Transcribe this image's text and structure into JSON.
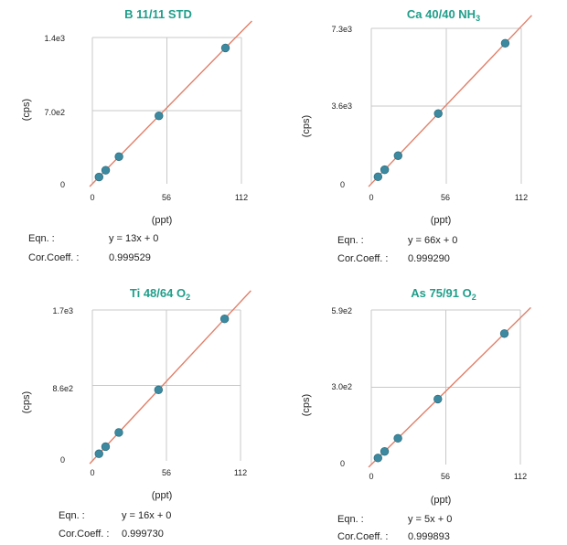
{
  "chart_data": [
    {
      "type": "scatter",
      "title": "B 11/11 STD",
      "title_sub": "",
      "xlabel": "(ppt)",
      "ylabel": "(cps)",
      "xticks": [
        "0",
        "56",
        "112"
      ],
      "yticks": [
        "0",
        "7.0e2",
        "1.4e3"
      ],
      "xlim": [
        0,
        112
      ],
      "ylim": [
        0,
        1400
      ],
      "x": [
        5,
        10,
        20,
        50,
        100
      ],
      "y": [
        65,
        130,
        260,
        650,
        1300
      ],
      "fit": {
        "slope": 13,
        "intercept": 0
      },
      "eqn_label": "Eqn. :",
      "eqn": "y = 13x + 0",
      "corr_label": "Cor.Coeff. :",
      "corr": "0.999529"
    },
    {
      "type": "scatter",
      "title": "Ca 40/40 NH",
      "title_sub": "3",
      "xlabel": "(ppt)",
      "ylabel": "(cps)",
      "xticks": [
        "0",
        "56",
        "112"
      ],
      "yticks": [
        "0",
        "3.6e3",
        "7.3e3"
      ],
      "xlim": [
        0,
        112
      ],
      "ylim": [
        0,
        7300
      ],
      "x": [
        5,
        10,
        20,
        50,
        100
      ],
      "y": [
        330,
        660,
        1320,
        3300,
        6600
      ],
      "fit": {
        "slope": 66,
        "intercept": 0
      },
      "eqn_label": "Eqn. :",
      "eqn": "y = 66x + 0",
      "corr_label": "Cor.Coeff. :",
      "corr": "0.999290"
    },
    {
      "type": "scatter",
      "title": "Ti 48/64 O",
      "title_sub": "2",
      "xlabel": "(ppt)",
      "ylabel": "(cps)",
      "xticks": [
        "0",
        "56",
        "112"
      ],
      "yticks": [
        "0",
        "8.6e2",
        "1.7e3"
      ],
      "xlim": [
        0,
        112
      ],
      "ylim": [
        0,
        1700
      ],
      "x": [
        5,
        10,
        20,
        50,
        100
      ],
      "y": [
        80,
        160,
        320,
        800,
        1600
      ],
      "fit": {
        "slope": 16,
        "intercept": 0
      },
      "eqn_label": "Eqn. :",
      "eqn": "y = 16x + 0",
      "corr_label": "Cor.Coeff. :",
      "corr": "0.999730"
    },
    {
      "type": "scatter",
      "title": "As 75/91 O",
      "title_sub": "2",
      "xlabel": "(ppt)",
      "ylabel": "(cps)",
      "xticks": [
        "0",
        "56",
        "112"
      ],
      "yticks": [
        "0",
        "3.0e2",
        "5.9e2"
      ],
      "xlim": [
        0,
        112
      ],
      "ylim": [
        0,
        590
      ],
      "x": [
        5,
        10,
        20,
        50,
        100
      ],
      "y": [
        25,
        50,
        100,
        250,
        500
      ],
      "fit": {
        "slope": 5,
        "intercept": 0
      },
      "eqn_label": "Eqn. :",
      "eqn": "y = 5x + 0",
      "corr_label": "Cor.Coeff. :",
      "corr": "0.999893"
    }
  ],
  "colors": {
    "title": "#1f9e8a",
    "fit_line": "#e0806a",
    "marker_fill": "#3d8aa0",
    "marker_stroke": "#2c6f82",
    "grid": "#c8c8c8"
  }
}
